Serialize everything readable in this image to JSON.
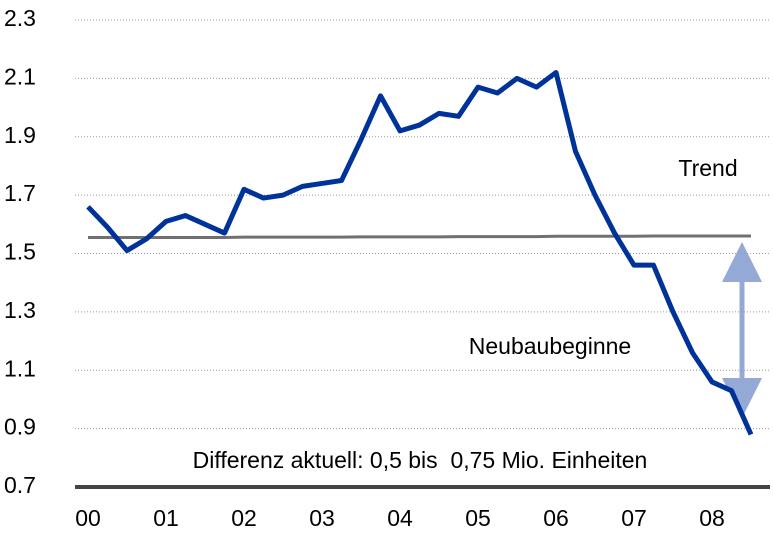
{
  "chart_data": {
    "type": "line",
    "categories": [
      "00",
      null,
      null,
      null,
      "01",
      null,
      null,
      null,
      "02",
      null,
      null,
      null,
      "03",
      null,
      null,
      null,
      "04",
      null,
      null,
      null,
      "05",
      null,
      null,
      null,
      "06",
      null,
      null,
      null,
      "07",
      null,
      null,
      null,
      "08",
      null,
      null
    ],
    "series": [
      {
        "name": "Neubaubeginne",
        "color": "#003399",
        "values": [
          1.66,
          1.59,
          1.51,
          1.55,
          1.61,
          1.63,
          1.6,
          1.57,
          1.72,
          1.69,
          1.7,
          1.73,
          1.74,
          1.75,
          1.89,
          2.04,
          1.92,
          1.94,
          1.98,
          1.97,
          2.07,
          2.05,
          2.1,
          2.07,
          2.12,
          1.85,
          1.7,
          1.57,
          1.46,
          1.46,
          1.3,
          1.16,
          1.06,
          1.03,
          0.88
        ]
      },
      {
        "name": "Trend",
        "color": "#707070",
        "values": [
          1.555,
          1.555,
          1.555,
          1.555,
          1.555,
          1.555,
          1.555,
          1.555,
          1.556,
          1.556,
          1.556,
          1.556,
          1.556,
          1.556,
          1.557,
          1.557,
          1.557,
          1.557,
          1.557,
          1.558,
          1.558,
          1.558,
          1.558,
          1.558,
          1.559,
          1.559,
          1.559,
          1.559,
          1.559,
          1.56,
          1.56,
          1.56,
          1.56,
          1.56,
          1.56
        ]
      }
    ],
    "annotation": "Differenz aktuell: 0,5 bis  0,75 Mio. Einheiten",
    "ylim": [
      0.7,
      2.3
    ],
    "yticks": [
      0.7,
      0.9,
      1.1,
      1.3,
      1.5,
      1.7,
      1.9,
      2.1,
      2.3
    ],
    "grid": true
  }
}
